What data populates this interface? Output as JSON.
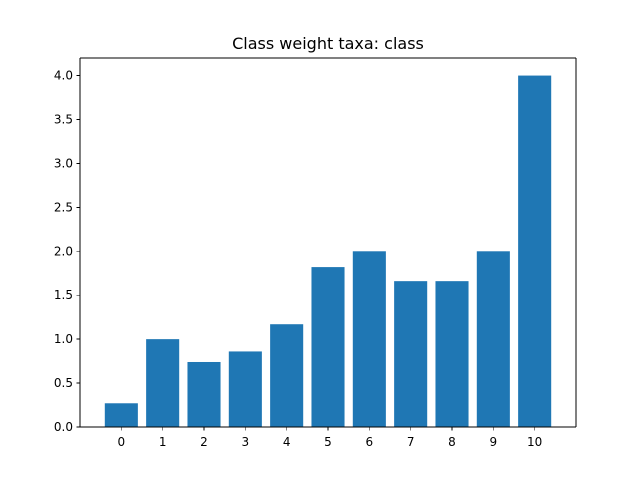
{
  "chart_data": {
    "type": "bar",
    "title": "Class weight taxa: class",
    "xlabel": "",
    "ylabel": "",
    "categories": [
      "0",
      "1",
      "2",
      "3",
      "4",
      "5",
      "6",
      "7",
      "8",
      "9",
      "10"
    ],
    "values": [
      0.27,
      1.0,
      0.74,
      0.86,
      1.17,
      1.82,
      2.0,
      1.66,
      1.66,
      2.0,
      4.0
    ],
    "ylim": [
      0,
      4.2
    ],
    "yticks": [
      0.0,
      0.5,
      1.0,
      1.5,
      2.0,
      2.5,
      3.0,
      3.5,
      4.0
    ],
    "ytick_labels": [
      "0.0",
      "0.5",
      "1.0",
      "1.5",
      "2.0",
      "2.5",
      "3.0",
      "3.5",
      "4.0"
    ],
    "bar_color": "#1f77b4",
    "grid": false,
    "legend": "none"
  }
}
